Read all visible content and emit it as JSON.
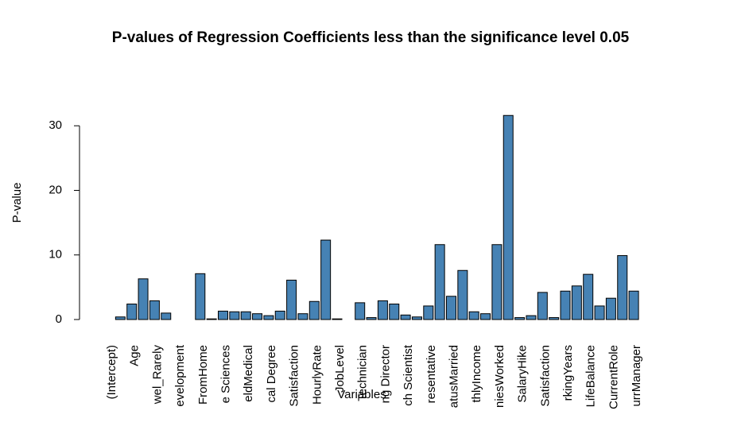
{
  "chart_data": {
    "type": "bar",
    "title": "P-values of Regression Coefficients less than the significance level 0.05",
    "x_label": "Variables",
    "y_label": "P-value",
    "categories": [
      "(Intercept)",
      null,
      "Age",
      null,
      "wel_Rarely",
      null,
      "evelopment",
      null,
      "FromHome",
      null,
      "e Sciences",
      null,
      "eldMedical",
      null,
      "cal Degree",
      null,
      "Satisfaction",
      null,
      "HourlyRate",
      null,
      "JobLevel",
      null,
      "Technician",
      null,
      "ng Director",
      null,
      "ch Scientist",
      null,
      "resentative",
      null,
      "atusMarried",
      null,
      "thlyIncome",
      null,
      "niesWorked",
      null,
      "SalaryHike",
      null,
      "Satisfaction",
      null,
      "rkingYears",
      null,
      "LifeBalance",
      null,
      "CurrentRole",
      null,
      "urrManager"
    ],
    "values": [
      0,
      0.4,
      2.4,
      6.3,
      2.9,
      1.0,
      0,
      0,
      7.1,
      0.1,
      1.3,
      1.2,
      1.2,
      0.9,
      0.6,
      1.3,
      6.1,
      0.9,
      2.8,
      12.3,
      0.1,
      0,
      2.6,
      0.3,
      2.9,
      2.4,
      0.7,
      0.4,
      2.1,
      11.6,
      3.6,
      7.6,
      1.2,
      0.9,
      11.6,
      31.6,
      0.3,
      0.6,
      4.2,
      0.3,
      4.4,
      5.2,
      7.0,
      2.1,
      3.3,
      9.9,
      4.4
    ],
    "color": "#4682b4",
    "ylim": [
      0,
      32
    ],
    "yticks": [
      0,
      10,
      20,
      30
    ],
    "grid": false
  }
}
